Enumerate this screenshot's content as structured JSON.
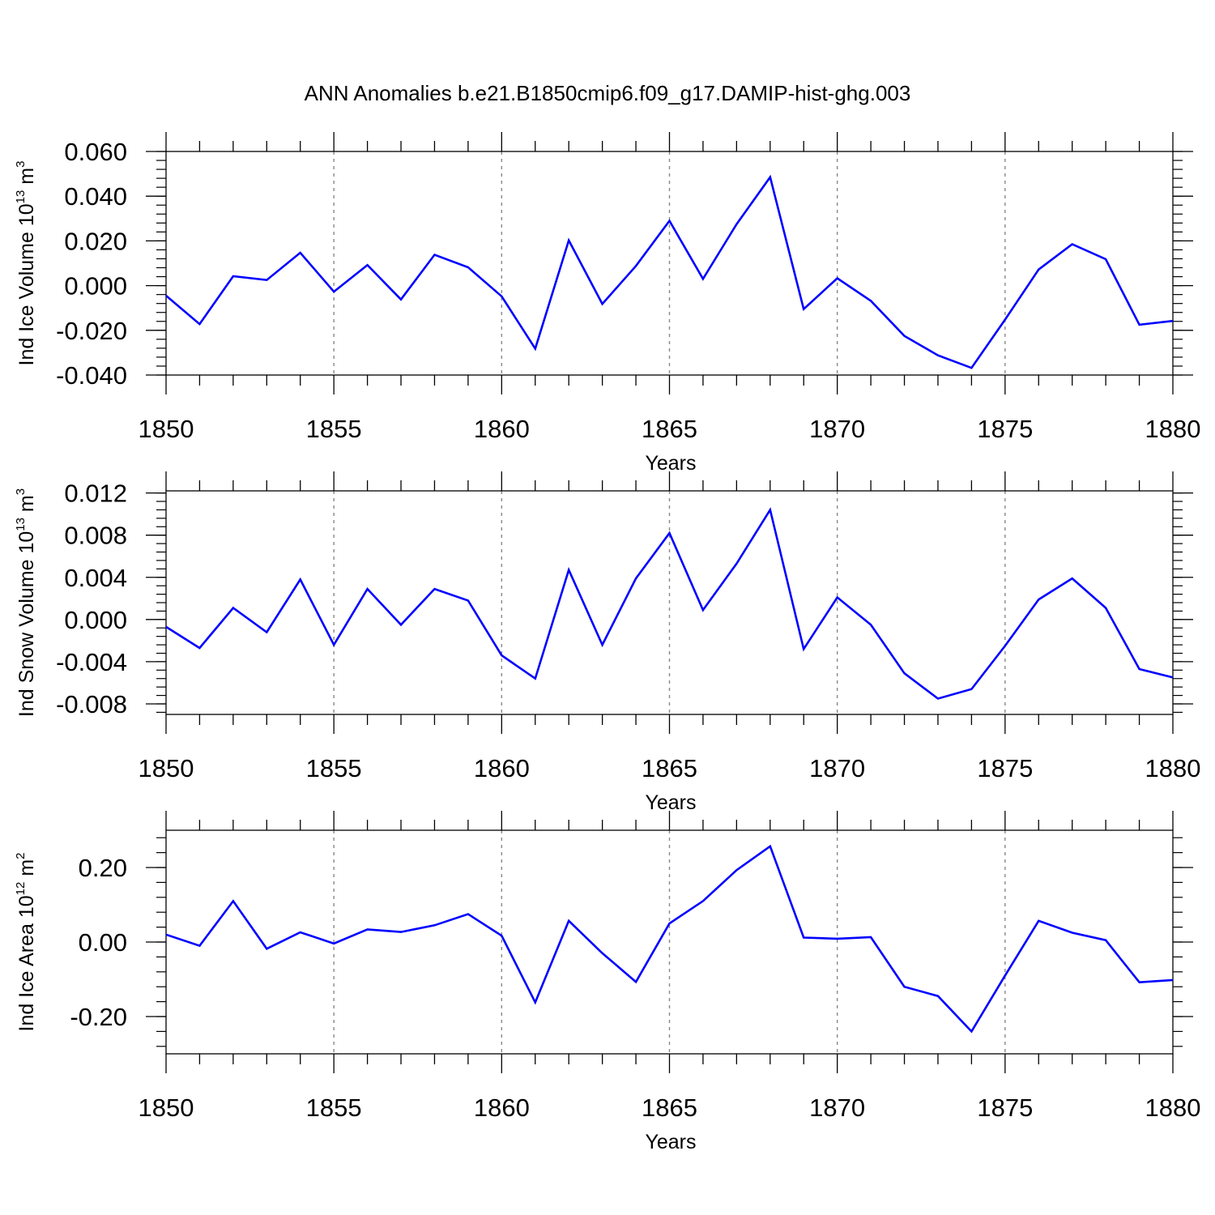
{
  "title": "ANN Anomalies b.e21.B1850cmip6.f09_g17.DAMIP-hist-ghg.003",
  "line_color": "#0000ff",
  "chart_data": [
    {
      "type": "line",
      "xlabel": "Years",
      "ylabel": {
        "main": "Ind Ice Volume 10",
        "exp": "13",
        "unit": " m",
        "unit_exp": "3"
      },
      "xlim": [
        1850,
        1880
      ],
      "ylim": [
        -0.04,
        0.06
      ],
      "yticks": [
        -0.04,
        -0.02,
        0.0,
        0.02,
        0.04,
        0.06
      ],
      "ytick_labels": [
        "-0.040",
        "-0.020",
        "0.000",
        "0.020",
        "0.040",
        "0.060"
      ],
      "xticks": [
        1850,
        1855,
        1860,
        1865,
        1870,
        1875,
        1880
      ],
      "xtick_labels": [
        "1850",
        "1855",
        "1860",
        "1865",
        "1870",
        "1875",
        "1880"
      ],
      "x": [
        1850,
        1851,
        1852,
        1853,
        1854,
        1855,
        1856,
        1857,
        1858,
        1859,
        1860,
        1861,
        1862,
        1863,
        1864,
        1865,
        1866,
        1867,
        1868,
        1869,
        1870,
        1871,
        1872,
        1873,
        1874,
        1875,
        1876,
        1877,
        1878,
        1879,
        1880
      ],
      "values": [
        -0.0045,
        -0.0172,
        0.0042,
        0.0025,
        0.0147,
        -0.0027,
        0.0092,
        -0.0062,
        0.0138,
        0.0082,
        -0.0048,
        -0.0282,
        0.0202,
        -0.0082,
        0.0088,
        0.029,
        0.003,
        0.0275,
        0.0485,
        -0.0105,
        0.0033,
        -0.0068,
        -0.0225,
        -0.0312,
        -0.0368,
        -0.0152,
        0.0072,
        0.0185,
        0.0118,
        -0.0175,
        -0.0158
      ]
    },
    {
      "type": "line",
      "xlabel": "Years",
      "ylabel": {
        "main": "Ind Snow Volume 10",
        "exp": "13",
        "unit": " m",
        "unit_exp": "3"
      },
      "xlim": [
        1850,
        1880
      ],
      "ylim": [
        -0.009,
        0.0122
      ],
      "yticks": [
        -0.008,
        -0.004,
        0.0,
        0.004,
        0.008,
        0.012
      ],
      "ytick_labels": [
        "-0.008",
        "-0.004",
        "0.000",
        "0.004",
        "0.008",
        "0.012"
      ],
      "xticks": [
        1850,
        1855,
        1860,
        1865,
        1870,
        1875,
        1880
      ],
      "xtick_labels": [
        "1850",
        "1855",
        "1860",
        "1865",
        "1870",
        "1875",
        "1880"
      ],
      "x": [
        1850,
        1851,
        1852,
        1853,
        1854,
        1855,
        1856,
        1857,
        1858,
        1859,
        1860,
        1861,
        1862,
        1863,
        1864,
        1865,
        1866,
        1867,
        1868,
        1869,
        1870,
        1871,
        1872,
        1873,
        1874,
        1875,
        1876,
        1877,
        1878,
        1879,
        1880
      ],
      "values": [
        -0.0007,
        -0.0027,
        0.0011,
        -0.0012,
        0.0038,
        -0.0024,
        0.0029,
        -0.0005,
        0.0029,
        0.0018,
        -0.0034,
        -0.0056,
        0.0047,
        -0.0024,
        0.0039,
        0.0082,
        0.0009,
        0.0053,
        0.0104,
        -0.0028,
        0.0021,
        -0.0005,
        -0.0051,
        -0.0075,
        -0.0066,
        -0.0025,
        0.0019,
        0.0039,
        0.0011,
        -0.0047,
        -0.0055
      ]
    },
    {
      "type": "line",
      "xlabel": "Years",
      "ylabel": {
        "main": "Ind Ice Area 10",
        "exp": "12",
        "unit": " m",
        "unit_exp": "2"
      },
      "xlim": [
        1850,
        1880
      ],
      "ylim": [
        -0.3,
        0.3
      ],
      "yticks": [
        -0.2,
        0.0,
        0.2
      ],
      "ytick_labels": [
        "-0.20",
        "0.00",
        "0.20"
      ],
      "xticks": [
        1850,
        1855,
        1860,
        1865,
        1870,
        1875,
        1880
      ],
      "xtick_labels": [
        "1850",
        "1855",
        "1860",
        "1865",
        "1870",
        "1875",
        "1880"
      ],
      "x": [
        1850,
        1851,
        1852,
        1853,
        1854,
        1855,
        1856,
        1857,
        1858,
        1859,
        1860,
        1861,
        1862,
        1863,
        1864,
        1865,
        1866,
        1867,
        1868,
        1869,
        1870,
        1871,
        1872,
        1873,
        1874,
        1875,
        1876,
        1877,
        1878,
        1879,
        1880
      ],
      "values": [
        0.02,
        -0.01,
        0.11,
        -0.018,
        0.026,
        -0.004,
        0.034,
        0.027,
        0.045,
        0.075,
        0.017,
        -0.162,
        0.057,
        -0.03,
        -0.107,
        0.05,
        0.11,
        0.193,
        0.257,
        0.012,
        0.009,
        0.013,
        -0.12,
        -0.145,
        -0.24,
        -0.09,
        0.057,
        0.025,
        0.005,
        -0.108,
        -0.102
      ]
    }
  ]
}
